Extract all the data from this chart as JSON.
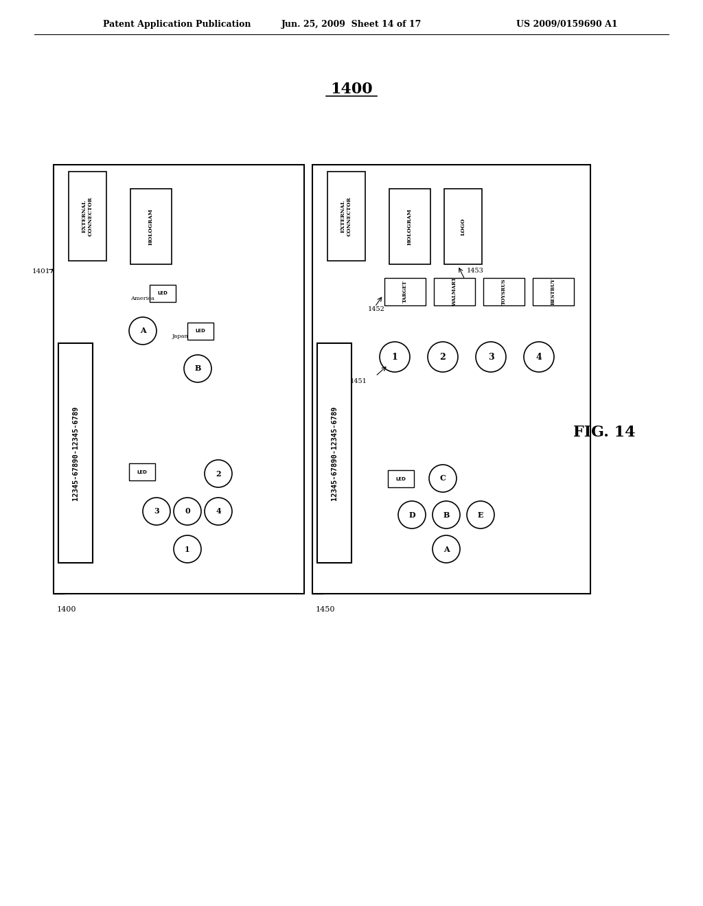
{
  "title": "1400",
  "header_left": "Patent Application Publication",
  "header_mid": "Jun. 25, 2009  Sheet 14 of 17",
  "header_right": "US 2009/0159690 A1",
  "fig_label": "FIG. 14",
  "card1_label": "1400",
  "card2_label": "1450",
  "card1_ref": "1401",
  "card2_ref1": "1451",
  "card2_ref2": "1452",
  "card2_ref3": "1453",
  "barcode": "12345-67890-12345-6789",
  "bg_color": "#ffffff",
  "fg_color": "#000000"
}
